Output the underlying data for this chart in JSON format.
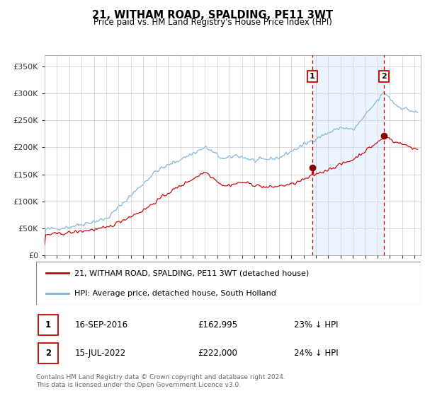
{
  "title": "21, WITHAM ROAD, SPALDING, PE11 3WT",
  "subtitle": "Price paid vs. HM Land Registry's House Price Index (HPI)",
  "legend_line1": "21, WITHAM ROAD, SPALDING, PE11 3WT (detached house)",
  "legend_line2": "HPI: Average price, detached house, South Holland",
  "footnote": "Contains HM Land Registry data © Crown copyright and database right 2024.\nThis data is licensed under the Open Government Licence v3.0.",
  "marker1_date": "16-SEP-2016",
  "marker1_price": "£162,995",
  "marker1_hpi": "23% ↓ HPI",
  "marker1_year": 2016.71,
  "marker1_value": 162995,
  "marker2_date": "15-JUL-2022",
  "marker2_price": "£222,000",
  "marker2_hpi": "24% ↓ HPI",
  "marker2_year": 2022.54,
  "marker2_value": 222000,
  "hpi_color": "#7ab4d8",
  "property_color": "#cc0000",
  "marker_color": "#8b0000",
  "background_shade": "#ddeeff",
  "grid_color": "#cccccc",
  "ylim": [
    0,
    370000
  ],
  "xlim_start": 1995.0,
  "xlim_end": 2025.5,
  "shade_start": 2016.71,
  "shade_end": 2022.54,
  "yticks": [
    0,
    50000,
    100000,
    150000,
    200000,
    250000,
    300000,
    350000
  ],
  "xticks": [
    1995,
    1996,
    1997,
    1998,
    1999,
    2000,
    2001,
    2002,
    2003,
    2004,
    2005,
    2006,
    2007,
    2008,
    2009,
    2010,
    2011,
    2012,
    2013,
    2014,
    2015,
    2016,
    2017,
    2018,
    2019,
    2020,
    2021,
    2022,
    2023,
    2024,
    2025
  ]
}
